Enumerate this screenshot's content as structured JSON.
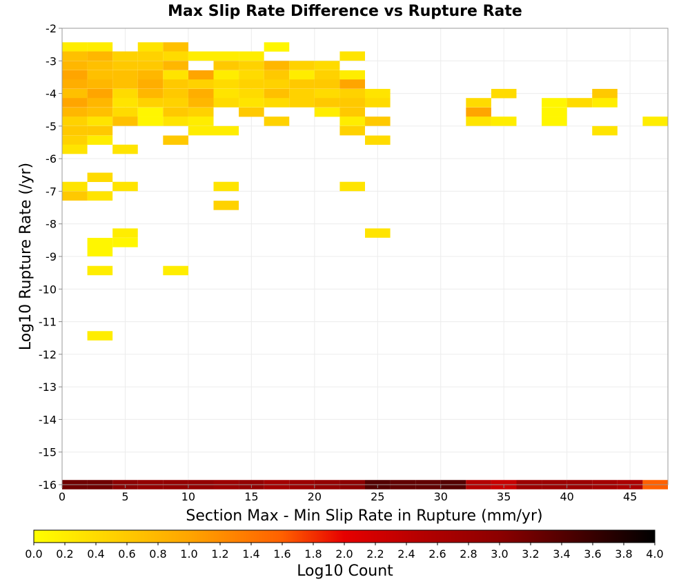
{
  "chart_data": {
    "type": "heatmap",
    "title": "Max Slip Rate Difference vs Rupture Rate",
    "xlabel": "Section Max - Min Slip Rate in Rupture (mm/yr)",
    "ylabel": "Log10 Rupture Rate (/yr)",
    "xlim": [
      0,
      48
    ],
    "ylim": [
      -16,
      -2
    ],
    "x_ticks": [
      "0",
      "5",
      "10",
      "15",
      "20",
      "25",
      "30",
      "35",
      "40",
      "45"
    ],
    "y_ticks": [
      "-2",
      "-3",
      "-4",
      "-5",
      "-6",
      "-7",
      "-8",
      "-9",
      "-10",
      "-11",
      "-12",
      "-13",
      "-14",
      "-15",
      "-16"
    ],
    "bin_width": 2,
    "bin_height": 0.286,
    "grid": true,
    "colorbar": {
      "label": "Log10 Count",
      "range": [
        0.0,
        4.0
      ],
      "ticks": [
        "0.0",
        "0.2",
        "0.4",
        "0.6",
        "0.8",
        "1.0",
        "1.2",
        "1.4",
        "1.6",
        "1.8",
        "2.0",
        "2.2",
        "2.4",
        "2.6",
        "2.8",
        "3.0",
        "3.2",
        "3.4",
        "3.6",
        "3.8",
        "4.0"
      ],
      "placement": "bottom"
    },
    "cells": [
      {
        "x": 0,
        "y": -2.43,
        "v": 0.2
      },
      {
        "x": 2,
        "y": -2.43,
        "v": 0.2
      },
      {
        "x": 6,
        "y": -2.43,
        "v": 0.3
      },
      {
        "x": 8,
        "y": -2.43,
        "v": 0.7
      },
      {
        "x": 16,
        "y": -2.43,
        "v": 0.1
      },
      {
        "x": 0,
        "y": -2.71,
        "v": 0.7
      },
      {
        "x": 2,
        "y": -2.71,
        "v": 0.8
      },
      {
        "x": 4,
        "y": -2.71,
        "v": 0.5
      },
      {
        "x": 6,
        "y": -2.71,
        "v": 0.5
      },
      {
        "x": 8,
        "y": -2.71,
        "v": 0.4
      },
      {
        "x": 10,
        "y": -2.71,
        "v": 0.2
      },
      {
        "x": 12,
        "y": -2.71,
        "v": 0.2
      },
      {
        "x": 14,
        "y": -2.71,
        "v": 0.2
      },
      {
        "x": 22,
        "y": -2.71,
        "v": 0.3
      },
      {
        "x": 0,
        "y": -3.0,
        "v": 0.8
      },
      {
        "x": 2,
        "y": -3.0,
        "v": 0.7
      },
      {
        "x": 4,
        "y": -3.0,
        "v": 0.6
      },
      {
        "x": 6,
        "y": -3.0,
        "v": 0.6
      },
      {
        "x": 8,
        "y": -3.0,
        "v": 0.8
      },
      {
        "x": 12,
        "y": -3.0,
        "v": 0.6
      },
      {
        "x": 14,
        "y": -3.0,
        "v": 0.5
      },
      {
        "x": 16,
        "y": -3.0,
        "v": 0.8
      },
      {
        "x": 18,
        "y": -3.0,
        "v": 0.5
      },
      {
        "x": 20,
        "y": -3.0,
        "v": 0.4
      },
      {
        "x": 0,
        "y": -3.29,
        "v": 1.0
      },
      {
        "x": 2,
        "y": -3.29,
        "v": 0.7
      },
      {
        "x": 4,
        "y": -3.29,
        "v": 0.7
      },
      {
        "x": 6,
        "y": -3.29,
        "v": 0.8
      },
      {
        "x": 8,
        "y": -3.29,
        "v": 0.3
      },
      {
        "x": 10,
        "y": -3.29,
        "v": 1.0
      },
      {
        "x": 12,
        "y": -3.29,
        "v": 0.2
      },
      {
        "x": 14,
        "y": -3.29,
        "v": 0.4
      },
      {
        "x": 16,
        "y": -3.29,
        "v": 0.6
      },
      {
        "x": 18,
        "y": -3.29,
        "v": 0.2
      },
      {
        "x": 20,
        "y": -3.29,
        "v": 0.5
      },
      {
        "x": 22,
        "y": -3.29,
        "v": 0.2
      },
      {
        "x": 0,
        "y": -3.57,
        "v": 0.9
      },
      {
        "x": 2,
        "y": -3.57,
        "v": 0.8
      },
      {
        "x": 4,
        "y": -3.57,
        "v": 0.7
      },
      {
        "x": 6,
        "y": -3.57,
        "v": 0.9
      },
      {
        "x": 8,
        "y": -3.57,
        "v": 0.6
      },
      {
        "x": 10,
        "y": -3.57,
        "v": 0.5
      },
      {
        "x": 12,
        "y": -3.57,
        "v": 0.4
      },
      {
        "x": 14,
        "y": -3.57,
        "v": 0.5
      },
      {
        "x": 16,
        "y": -3.57,
        "v": 0.5
      },
      {
        "x": 18,
        "y": -3.57,
        "v": 0.6
      },
      {
        "x": 20,
        "y": -3.57,
        "v": 0.6
      },
      {
        "x": 22,
        "y": -3.57,
        "v": 1.0
      },
      {
        "x": 0,
        "y": -3.86,
        "v": 0.7
      },
      {
        "x": 2,
        "y": -3.86,
        "v": 1.0
      },
      {
        "x": 4,
        "y": -3.86,
        "v": 0.4
      },
      {
        "x": 6,
        "y": -3.86,
        "v": 0.8
      },
      {
        "x": 8,
        "y": -3.86,
        "v": 0.6
      },
      {
        "x": 10,
        "y": -3.86,
        "v": 0.9
      },
      {
        "x": 12,
        "y": -3.86,
        "v": 0.3
      },
      {
        "x": 14,
        "y": -3.86,
        "v": 0.4
      },
      {
        "x": 16,
        "y": -3.86,
        "v": 0.7
      },
      {
        "x": 18,
        "y": -3.86,
        "v": 0.5
      },
      {
        "x": 20,
        "y": -3.86,
        "v": 0.4
      },
      {
        "x": 22,
        "y": -3.86,
        "v": 0.5
      },
      {
        "x": 24,
        "y": -3.86,
        "v": 0.3
      },
      {
        "x": 34,
        "y": -3.86,
        "v": 0.4
      },
      {
        "x": 42,
        "y": -3.86,
        "v": 0.6
      },
      {
        "x": 0,
        "y": -4.14,
        "v": 1.0
      },
      {
        "x": 2,
        "y": -4.14,
        "v": 0.8
      },
      {
        "x": 4,
        "y": -4.14,
        "v": 0.3
      },
      {
        "x": 6,
        "y": -4.14,
        "v": 0.5
      },
      {
        "x": 8,
        "y": -4.14,
        "v": 0.5
      },
      {
        "x": 10,
        "y": -4.14,
        "v": 0.8
      },
      {
        "x": 12,
        "y": -4.14,
        "v": 0.4
      },
      {
        "x": 14,
        "y": -4.14,
        "v": 0.3
      },
      {
        "x": 16,
        "y": -4.14,
        "v": 0.4
      },
      {
        "x": 18,
        "y": -4.14,
        "v": 0.5
      },
      {
        "x": 20,
        "y": -4.14,
        "v": 0.6
      },
      {
        "x": 22,
        "y": -4.14,
        "v": 0.6
      },
      {
        "x": 24,
        "y": -4.14,
        "v": 0.4
      },
      {
        "x": 32,
        "y": -4.14,
        "v": 0.4
      },
      {
        "x": 38,
        "y": -4.14,
        "v": 0.1
      },
      {
        "x": 40,
        "y": -4.14,
        "v": 0.4
      },
      {
        "x": 42,
        "y": -4.14,
        "v": 0.2
      },
      {
        "x": 0,
        "y": -4.43,
        "v": 0.8
      },
      {
        "x": 2,
        "y": -4.43,
        "v": 0.7
      },
      {
        "x": 4,
        "y": -4.43,
        "v": 0.4
      },
      {
        "x": 6,
        "y": -4.43,
        "v": 0.1
      },
      {
        "x": 8,
        "y": -4.43,
        "v": 0.6
      },
      {
        "x": 10,
        "y": -4.43,
        "v": 0.5
      },
      {
        "x": 14,
        "y": -4.43,
        "v": 0.6
      },
      {
        "x": 20,
        "y": -4.43,
        "v": 0.2
      },
      {
        "x": 22,
        "y": -4.43,
        "v": 0.6
      },
      {
        "x": 32,
        "y": -4.43,
        "v": 1.0
      },
      {
        "x": 38,
        "y": -4.43,
        "v": 0.1
      },
      {
        "x": 0,
        "y": -4.71,
        "v": 0.5
      },
      {
        "x": 2,
        "y": -4.71,
        "v": 0.3
      },
      {
        "x": 4,
        "y": -4.71,
        "v": 0.7
      },
      {
        "x": 6,
        "y": -4.71,
        "v": 0.1
      },
      {
        "x": 8,
        "y": -4.71,
        "v": 0.3
      },
      {
        "x": 10,
        "y": -4.71,
        "v": 0.2
      },
      {
        "x": 16,
        "y": -4.71,
        "v": 0.5
      },
      {
        "x": 22,
        "y": -4.71,
        "v": 0.2
      },
      {
        "x": 24,
        "y": -4.71,
        "v": 0.6
      },
      {
        "x": 32,
        "y": -4.71,
        "v": 0.3
      },
      {
        "x": 34,
        "y": -4.71,
        "v": 0.2
      },
      {
        "x": 38,
        "y": -4.71,
        "v": 0.1
      },
      {
        "x": 46,
        "y": -4.71,
        "v": 0.2
      },
      {
        "x": 0,
        "y": -5.0,
        "v": 0.6
      },
      {
        "x": 2,
        "y": -5.0,
        "v": 0.6
      },
      {
        "x": 10,
        "y": -5.0,
        "v": 0.2
      },
      {
        "x": 12,
        "y": -5.0,
        "v": 0.2
      },
      {
        "x": 22,
        "y": -5.0,
        "v": 0.5
      },
      {
        "x": 42,
        "y": -5.0,
        "v": 0.3
      },
      {
        "x": 0,
        "y": -5.29,
        "v": 0.5
      },
      {
        "x": 2,
        "y": -5.29,
        "v": 0.2
      },
      {
        "x": 8,
        "y": -5.29,
        "v": 0.6
      },
      {
        "x": 24,
        "y": -5.29,
        "v": 0.4
      },
      {
        "x": 0,
        "y": -5.57,
        "v": 0.3
      },
      {
        "x": 4,
        "y": -5.57,
        "v": 0.3
      },
      {
        "x": 2,
        "y": -6.43,
        "v": 0.4
      },
      {
        "x": 0,
        "y": -6.71,
        "v": 0.3
      },
      {
        "x": 4,
        "y": -6.71,
        "v": 0.3
      },
      {
        "x": 12,
        "y": -6.71,
        "v": 0.3
      },
      {
        "x": 22,
        "y": -6.71,
        "v": 0.3
      },
      {
        "x": 0,
        "y": -7.0,
        "v": 0.6
      },
      {
        "x": 2,
        "y": -7.0,
        "v": 0.3
      },
      {
        "x": 12,
        "y": -7.29,
        "v": 0.5
      },
      {
        "x": 4,
        "y": -8.14,
        "v": 0.2
      },
      {
        "x": 24,
        "y": -8.14,
        "v": 0.3
      },
      {
        "x": 2,
        "y": -8.43,
        "v": 0.1
      },
      {
        "x": 4,
        "y": -8.43,
        "v": 0.1
      },
      {
        "x": 2,
        "y": -8.71,
        "v": 0.1
      },
      {
        "x": 2,
        "y": -9.29,
        "v": 0.2
      },
      {
        "x": 8,
        "y": -9.29,
        "v": 0.2
      },
      {
        "x": 2,
        "y": -11.29,
        "v": 0.2
      },
      {
        "x": 0,
        "y": -15.857,
        "v": 3.2
      },
      {
        "x": 2,
        "y": -15.857,
        "v": 3.2
      },
      {
        "x": 4,
        "y": -15.857,
        "v": 3.0
      },
      {
        "x": 6,
        "y": -15.857,
        "v": 2.9
      },
      {
        "x": 8,
        "y": -15.857,
        "v": 2.9
      },
      {
        "x": 10,
        "y": -15.857,
        "v": 2.9
      },
      {
        "x": 12,
        "y": -15.857,
        "v": 2.8
      },
      {
        "x": 14,
        "y": -15.857,
        "v": 2.9
      },
      {
        "x": 16,
        "y": -15.857,
        "v": 2.7
      },
      {
        "x": 18,
        "y": -15.857,
        "v": 2.8
      },
      {
        "x": 20,
        "y": -15.857,
        "v": 2.9
      },
      {
        "x": 22,
        "y": -15.857,
        "v": 3.0
      },
      {
        "x": 24,
        "y": -15.857,
        "v": 3.4
      },
      {
        "x": 26,
        "y": -15.857,
        "v": 3.3
      },
      {
        "x": 28,
        "y": -15.857,
        "v": 3.3
      },
      {
        "x": 30,
        "y": -15.857,
        "v": 3.4
      },
      {
        "x": 32,
        "y": -15.857,
        "v": 2.5
      },
      {
        "x": 34,
        "y": -15.857,
        "v": 2.3
      },
      {
        "x": 36,
        "y": -15.857,
        "v": 2.8
      },
      {
        "x": 38,
        "y": -15.857,
        "v": 2.8
      },
      {
        "x": 40,
        "y": -15.857,
        "v": 2.8
      },
      {
        "x": 42,
        "y": -15.857,
        "v": 2.7
      },
      {
        "x": 44,
        "y": -15.857,
        "v": 2.6
      },
      {
        "x": 46,
        "y": -15.857,
        "v": 1.6
      }
    ]
  }
}
